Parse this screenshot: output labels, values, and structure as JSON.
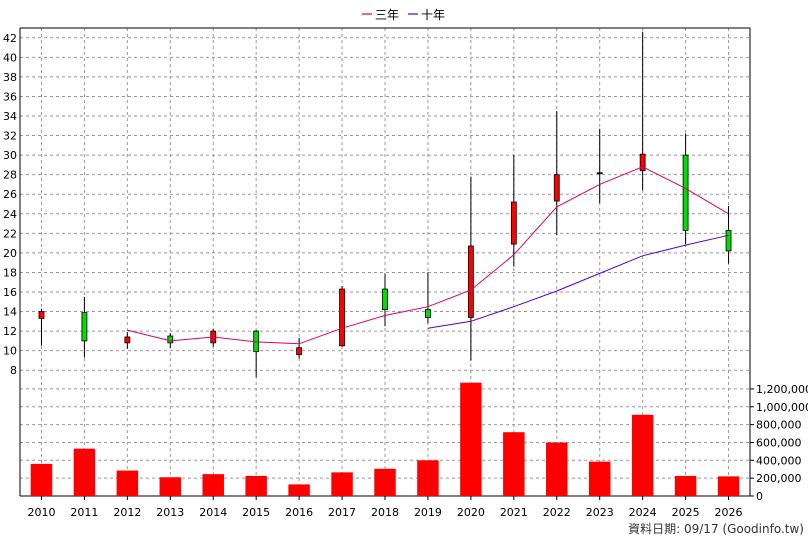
{
  "colors": {
    "up": "#ff0000",
    "down": "#00dd00",
    "ma3": "#dd0066",
    "ma10": "#5500cc",
    "volume": "#ff0000",
    "grid": "#999999",
    "axis": "#000000"
  },
  "chart_data": [
    {
      "type": "candlestick",
      "ylim": [
        7,
        43
      ],
      "yticks": [
        8,
        10,
        12,
        14,
        16,
        18,
        20,
        22,
        24,
        26,
        28,
        30,
        32,
        34,
        36,
        38,
        40,
        42
      ],
      "yticklabels": [
        "8",
        "10",
        "12",
        "14",
        "16",
        "18",
        "20",
        "22",
        "24",
        "26",
        "28",
        "30",
        "32",
        "34",
        "36",
        "38",
        "40",
        "42"
      ],
      "grid": true,
      "legend": {
        "position": "top-center",
        "items": [
          {
            "label": "三年",
            "color": "#dd0066"
          },
          {
            "label": "十年",
            "color": "#5500cc"
          }
        ]
      },
      "categories": [
        "2010",
        "2011",
        "2012",
        "2013",
        "2014",
        "2015",
        "2016",
        "2017",
        "2018",
        "2019",
        "2020",
        "2021",
        "2022",
        "2023",
        "2024",
        "2025",
        "2026"
      ],
      "ohlc": [
        {
          "open": 13.3,
          "high": 14.3,
          "low": 10.5,
          "close": 14.0
        },
        {
          "open": 13.9,
          "high": 15.5,
          "low": 9.3,
          "close": 11.0
        },
        {
          "open": 10.8,
          "high": 11.9,
          "low": 10.2,
          "close": 11.4
        },
        {
          "open": 11.5,
          "high": 11.8,
          "low": 10.3,
          "close": 10.8
        },
        {
          "open": 10.8,
          "high": 12.2,
          "low": 10.4,
          "close": 12.0
        },
        {
          "open": 12.0,
          "high": 12.1,
          "low": 7.3,
          "close": 9.9
        },
        {
          "open": 9.6,
          "high": 11.3,
          "low": 9.2,
          "close": 10.3
        },
        {
          "open": 10.5,
          "high": 16.6,
          "low": 10.4,
          "close": 16.3
        },
        {
          "open": 16.3,
          "high": 17.9,
          "low": 12.5,
          "close": 14.2
        },
        {
          "open": 14.2,
          "high": 18.0,
          "low": 12.8,
          "close": 13.4
        },
        {
          "open": 13.4,
          "high": 27.8,
          "low": 9.0,
          "close": 20.7
        },
        {
          "open": 20.9,
          "high": 30.0,
          "low": 18.6,
          "close": 25.2
        },
        {
          "open": 25.3,
          "high": 34.5,
          "low": 21.8,
          "close": 28.0
        },
        {
          "open": 28.1,
          "high": 32.7,
          "low": 25.1,
          "close": 28.2
        },
        {
          "open": 28.4,
          "high": 42.6,
          "low": 26.4,
          "close": 30.1
        },
        {
          "open": 30.0,
          "high": 32.2,
          "low": 20.9,
          "close": 22.3
        },
        {
          "open": 22.3,
          "high": 24.8,
          "low": 18.9,
          "close": 20.2
        }
      ],
      "series": [
        {
          "name": "三年",
          "values": [
            null,
            null,
            12.1,
            11.0,
            11.4,
            10.9,
            10.7,
            12.3,
            13.6,
            14.5,
            16.2,
            19.8,
            24.7,
            27.0,
            28.8,
            26.6,
            24.0
          ]
        },
        {
          "name": "十年",
          "values": [
            null,
            null,
            null,
            null,
            null,
            null,
            null,
            null,
            null,
            12.3,
            13.0,
            14.5,
            16.1,
            17.9,
            19.7,
            20.8,
            21.8
          ]
        }
      ]
    },
    {
      "type": "bar",
      "ylim": [
        0,
        1300000
      ],
      "yticks": [
        0,
        200000,
        400000,
        600000,
        800000,
        1000000,
        1200000
      ],
      "yticklabels": [
        "0",
        "200,000",
        "400,000",
        "600,000",
        "800,000",
        "1,000,000",
        "1,200,000"
      ],
      "grid": true,
      "categories": [
        "2010",
        "2011",
        "2012",
        "2013",
        "2014",
        "2015",
        "2016",
        "2017",
        "2018",
        "2019",
        "2020",
        "2021",
        "2022",
        "2023",
        "2024",
        "2025",
        "2026"
      ],
      "values": [
        360000,
        530000,
        285000,
        210000,
        245000,
        225000,
        130000,
        265000,
        305000,
        400000,
        1270000,
        715000,
        600000,
        385000,
        910000,
        225000,
        220000
      ]
    }
  ],
  "footer": "資料日期: 09/17 (Goodinfo.tw)"
}
